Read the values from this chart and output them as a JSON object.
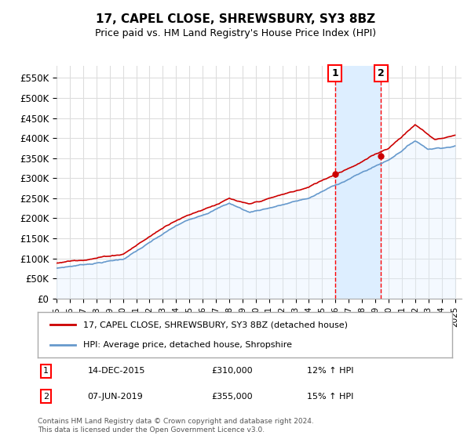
{
  "title": "17, CAPEL CLOSE, SHREWSBURY, SY3 8BZ",
  "subtitle": "Price paid vs. HM Land Registry's House Price Index (HPI)",
  "xlim_start": 1995.0,
  "xlim_end": 2025.5,
  "ylim": [
    0,
    580000
  ],
  "yticks": [
    0,
    50000,
    100000,
    150000,
    200000,
    250000,
    300000,
    350000,
    400000,
    450000,
    500000,
    550000
  ],
  "ytick_labels": [
    "£0",
    "£50K",
    "£100K",
    "£150K",
    "£200K",
    "£250K",
    "£300K",
    "£350K",
    "£400K",
    "£450K",
    "£500K",
    "£550K"
  ],
  "sale1_x": 2015.96,
  "sale1_y": 310000,
  "sale1_label": "14-DEC-2015",
  "sale1_price": "£310,000",
  "sale1_hpi": "12% ↑ HPI",
  "sale2_x": 2019.44,
  "sale2_y": 355000,
  "sale2_label": "07-JUN-2019",
  "sale2_price": "£355,000",
  "sale2_hpi": "15% ↑ HPI",
  "red_line_color": "#cc0000",
  "blue_line_color": "#6699cc",
  "blue_fill_color": "#ddeeff",
  "shading_color": "#ddeeff",
  "grid_color": "#dddddd",
  "legend_label_red": "17, CAPEL CLOSE, SHREWSBURY, SY3 8BZ (detached house)",
  "legend_label_blue": "HPI: Average price, detached house, Shropshire",
  "footer": "Contains HM Land Registry data © Crown copyright and database right 2024.\nThis data is licensed under the Open Government Licence v3.0."
}
